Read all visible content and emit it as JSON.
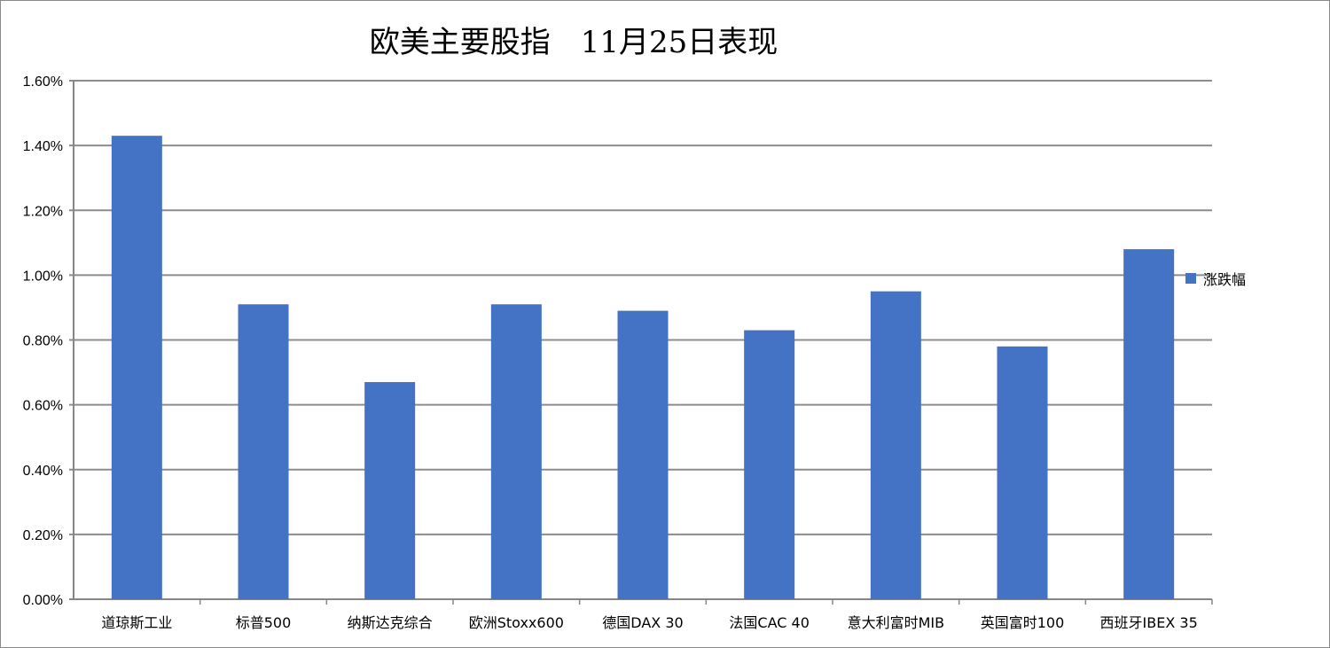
{
  "chart_data": {
    "type": "bar",
    "title": "欧美主要股指　11月25日表现",
    "categories": [
      "道琼斯工业",
      "标普500",
      "纳斯达克综合",
      "欧洲Stoxx600",
      "德国DAX 30",
      "法国CAC 40",
      "意大利富时MIB",
      "英国富时100",
      "西班牙IBEX 35"
    ],
    "series": [
      {
        "name": "涨跌幅",
        "values": [
          1.43,
          0.91,
          0.67,
          0.91,
          0.89,
          0.83,
          0.95,
          0.78,
          1.08
        ],
        "color": "#4472C4"
      }
    ],
    "unit": "%",
    "ylim": [
      0,
      1.6
    ],
    "yticks": [
      "0.00%",
      "0.20%",
      "0.40%",
      "0.60%",
      "0.80%",
      "1.00%",
      "1.20%",
      "1.40%",
      "1.60%"
    ],
    "grid": true,
    "legend_position": "right",
    "xlabel": "",
    "ylabel": ""
  }
}
